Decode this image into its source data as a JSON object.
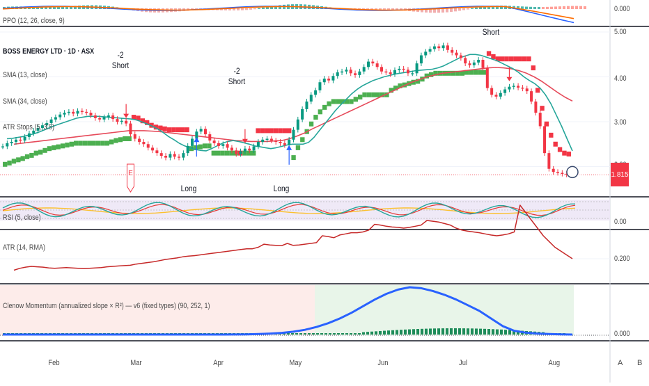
{
  "chart_meta": {
    "symbol_title": "BOSS ENERGY LTD · 1D · ASX",
    "last_price": "1.815",
    "corner_buttons": [
      "A",
      "B"
    ]
  },
  "colors": {
    "up_candle": "#089981",
    "down_candle": "#f23645",
    "sma_fast": "#26a69a",
    "sma_slow": "#e64a5a",
    "atr_stop_long": "#4caf50",
    "atr_stop_short": "#f23645",
    "atr_line": "#c62828",
    "clenow_line": "#2962ff",
    "clenow_hist": "#1e8c5a",
    "ppo_line": "#2962ff",
    "ppo_signal": "#ff6d00"
  },
  "chart_data": [
    {
      "type": "line",
      "pane": "ppo",
      "legend": "PPO (12, 26, close, 9)",
      "ytick_labels": [
        "0.000"
      ],
      "series": []
    },
    {
      "type": "line",
      "pane": "price",
      "title": "BOSS ENERGY LTD · 1D · ASX",
      "legend": [
        "SMA (13, close)",
        "SMA (34, close)",
        "ATR Stops (5, 3.5)"
      ],
      "ytick_labels": [
        "5.00",
        "4.00",
        "3.00",
        "2.00"
      ],
      "ylim": [
        1.7,
        5.1
      ],
      "xtick_labels": [
        "Feb",
        "Mar",
        "Apr",
        "May",
        "Jun",
        "Jul",
        "Aug"
      ],
      "last_price": 1.815,
      "signals": [
        {
          "text": [
            "-2",
            "Short"
          ],
          "kind": "short",
          "bar": 28
        },
        {
          "text": [
            "-2",
            "Short"
          ],
          "kind": "short",
          "bar": 55
        },
        {
          "text": [
            "Short"
          ],
          "kind": "short",
          "bar": 115
        },
        {
          "text": [
            "Long"
          ],
          "kind": "long",
          "bar": 44
        },
        {
          "text": [
            "Long"
          ],
          "kind": "long",
          "bar": 65
        }
      ],
      "marker": {
        "text": "E",
        "bar": 29
      },
      "close_series": [
        2.45,
        2.52,
        2.55,
        2.6,
        2.58,
        2.66,
        2.74,
        2.8,
        2.86,
        2.92,
        2.97,
        3.05,
        3.1,
        3.16,
        3.2,
        3.22,
        3.18,
        3.24,
        3.22,
        3.2,
        3.14,
        3.08,
        3.05,
        3.1,
        3.14,
        3.06,
        3.0,
        3.02,
        2.96,
        2.72,
        2.62,
        2.55,
        2.5,
        2.42,
        2.36,
        2.3,
        2.24,
        2.2,
        2.28,
        2.22,
        2.2,
        2.3,
        2.46,
        2.62,
        2.78,
        2.84,
        2.72,
        2.58,
        2.52,
        2.46,
        2.5,
        2.42,
        2.36,
        2.28,
        2.34,
        2.4,
        2.36,
        2.45,
        2.55,
        2.6,
        2.62,
        2.58,
        2.55,
        2.52,
        2.48,
        2.6,
        2.82,
        3.05,
        3.28,
        3.45,
        3.6,
        3.7,
        3.88,
        3.96,
        3.92,
        4.02,
        4.1,
        4.12,
        4.16,
        4.08,
        4.04,
        4.12,
        4.22,
        4.34,
        4.3,
        4.22,
        4.12,
        4.1,
        4.06,
        4.15,
        4.18,
        4.16,
        4.08,
        4.08,
        4.3,
        4.48,
        4.56,
        4.62,
        4.68,
        4.64,
        4.7,
        4.6,
        4.54,
        4.48,
        4.42,
        4.3,
        4.26,
        4.32,
        4.38,
        4.2,
        3.75,
        3.6,
        3.56,
        3.64,
        3.72,
        3.78,
        3.8,
        3.76,
        3.74,
        3.68,
        3.45,
        3.2,
        2.9,
        2.3,
        1.95,
        1.88,
        1.86,
        1.84,
        1.82,
        1.815
      ],
      "sma13": [
        2.62,
        2.63,
        2.65,
        2.67,
        2.7,
        2.73,
        2.77,
        2.82,
        2.87,
        2.92,
        2.96,
        3.0,
        3.04,
        3.08,
        3.1,
        3.12,
        3.12,
        3.12,
        3.11,
        3.1,
        3.09,
        3.08,
        3.07,
        3.06,
        3.04,
        3.0,
        2.95,
        2.9,
        2.84,
        2.76,
        2.67,
        2.6,
        2.52,
        2.46,
        2.42,
        2.38,
        2.36,
        2.35,
        2.4,
        2.46,
        2.52,
        2.56,
        2.58,
        2.56,
        2.53,
        2.5,
        2.46,
        2.44,
        2.42,
        2.4,
        2.42,
        2.45,
        2.48,
        2.5,
        2.5,
        2.5,
        2.54,
        2.65,
        2.8,
        2.95,
        3.1,
        3.25,
        3.38,
        3.5,
        3.62,
        3.72,
        3.8,
        3.86,
        3.92,
        3.96,
        4.0,
        4.03,
        4.06,
        4.08,
        4.1,
        4.12,
        4.14,
        4.15,
        4.16,
        4.17,
        4.2,
        4.24,
        4.3,
        4.36,
        4.42,
        4.46,
        4.5,
        4.5,
        4.48,
        4.44,
        4.4,
        4.36,
        4.3,
        4.24,
        4.18,
        4.1,
        4.0,
        3.92,
        3.85,
        3.75,
        3.6,
        3.4,
        3.15,
        2.9,
        2.62,
        2.35
      ],
      "sma34": [
        2.5,
        2.52,
        2.54,
        2.56,
        2.58,
        2.6,
        2.62,
        2.64,
        2.66,
        2.68,
        2.7,
        2.72,
        2.74,
        2.76,
        2.78,
        2.8,
        2.8,
        2.8,
        2.79,
        2.78,
        2.76,
        2.74,
        2.72,
        2.7,
        2.68,
        2.66,
        2.64,
        2.62,
        2.6,
        2.58,
        2.57,
        2.56,
        2.56,
        2.56,
        2.57,
        2.58,
        2.62,
        2.68,
        2.75,
        2.84,
        2.92,
        3.0,
        3.08,
        3.16,
        3.24,
        3.32,
        3.4,
        3.48,
        3.56,
        3.64,
        3.72,
        3.8,
        3.88,
        3.94,
        4.0,
        4.04,
        4.08,
        4.1,
        4.12,
        4.14,
        4.16,
        4.18,
        4.2,
        4.21,
        4.2,
        4.18,
        4.14,
        4.08,
        4.0,
        3.9,
        3.78,
        3.66,
        3.55,
        3.46
      ],
      "atr_stop": [
        2.05,
        2.08,
        2.12,
        2.15,
        2.18,
        2.22,
        2.25,
        2.3,
        2.32,
        2.36,
        2.4,
        2.42,
        2.44,
        2.46,
        2.48,
        2.5,
        2.52,
        2.52,
        2.52,
        2.52,
        2.52,
        2.52,
        2.52,
        2.52,
        2.55,
        2.58,
        2.6,
        2.62,
        2.62,
        3.1,
        3.08,
        3.02,
        2.98,
        2.92,
        2.88,
        2.86,
        2.84,
        2.82,
        2.82,
        2.82,
        2.82,
        2.82,
        2.4,
        2.42,
        2.44,
        2.46,
        2.46,
        2.3,
        2.3,
        2.3,
        2.3,
        2.3,
        2.3,
        2.3,
        2.3,
        2.3,
        2.3,
        2.8,
        2.8,
        2.8,
        2.8,
        2.8,
        2.8,
        2.8,
        2.8,
        2.2,
        2.42,
        2.6,
        2.78,
        2.95,
        3.1,
        3.22,
        3.32,
        3.4,
        3.45,
        3.45,
        3.45,
        3.45,
        3.45,
        3.5,
        3.55,
        3.6,
        3.6,
        3.6,
        3.6,
        3.6,
        3.6,
        3.7,
        3.75,
        3.8,
        3.82,
        3.85,
        3.88,
        3.9,
        3.95,
        4.02,
        4.05,
        4.08,
        4.08,
        4.08,
        4.08,
        4.08,
        4.08,
        4.08,
        4.1,
        4.1,
        4.1,
        4.1,
        4.1,
        4.52,
        4.45,
        4.4,
        4.4,
        4.4,
        4.4,
        4.4,
        4.4,
        4.4,
        4.4,
        4.2,
        3.7,
        3.3,
        2.95,
        2.7,
        2.5,
        2.38,
        2.3,
        2.28,
        2.28
      ]
    },
    {
      "type": "line",
      "pane": "rsi",
      "legend": "RSI (5, close)",
      "ytick_labels": [
        "0.00"
      ],
      "series": []
    },
    {
      "type": "line",
      "pane": "atr",
      "legend": "ATR (14, RMA)",
      "ytick_labels": [
        "0.200"
      ],
      "series": [
        {
          "name": "ATR",
          "values": [
            0.17,
            0.175,
            0.178,
            0.18,
            0.179,
            0.178,
            0.176,
            0.175,
            0.176,
            0.177,
            0.176,
            0.175,
            0.174,
            0.175,
            0.176,
            0.177,
            0.179,
            0.18,
            0.181,
            0.182,
            0.183,
            0.186,
            0.188,
            0.19,
            0.192,
            0.195,
            0.198,
            0.2,
            0.202,
            0.205,
            0.207,
            0.208,
            0.21,
            0.212,
            0.214,
            0.216,
            0.218,
            0.22,
            0.222,
            0.224,
            0.226,
            0.226,
            0.23,
            0.238,
            0.236,
            0.235,
            0.234,
            0.24,
            0.235,
            0.236,
            0.238,
            0.24,
            0.242,
            0.26,
            0.258,
            0.255,
            0.262,
            0.265,
            0.268,
            0.268,
            0.27,
            0.275,
            0.29,
            0.288,
            0.285,
            0.283,
            0.282,
            0.28,
            0.282,
            0.285,
            0.288,
            0.3,
            0.298,
            0.296,
            0.292,
            0.288,
            0.28,
            0.275,
            0.272,
            0.27,
            0.268,
            0.265,
            0.262,
            0.26,
            0.262,
            0.265,
            0.27,
            0.34,
            0.32,
            0.3,
            0.28,
            0.26,
            0.245,
            0.23,
            0.22,
            0.21,
            0.2
          ]
        }
      ]
    },
    {
      "type": "area",
      "pane": "clenow",
      "legend": "Clenow Momentum (annualized slope × R²) — v6 (fixed types) (90, 252, 1)",
      "ytick_labels": [
        "0.000"
      ],
      "series": [
        {
          "name": "Clenow",
          "values": [
            0,
            0,
            0,
            0,
            0,
            0,
            0,
            0,
            0,
            0,
            0,
            0,
            0,
            0,
            0,
            0,
            0,
            0,
            0,
            0,
            0.002,
            0.005,
            0.01,
            0.02,
            0.035,
            0.06,
            0.1,
            0.16,
            0.24,
            0.34,
            0.46,
            0.6,
            0.74,
            0.86,
            0.95,
            1.0,
            0.98,
            0.92,
            0.84,
            0.74,
            0.62,
            0.5,
            0.34,
            0.18,
            0.08,
            0.04,
            0.02,
            0.01,
            0.005,
            0.0
          ]
        }
      ]
    }
  ]
}
